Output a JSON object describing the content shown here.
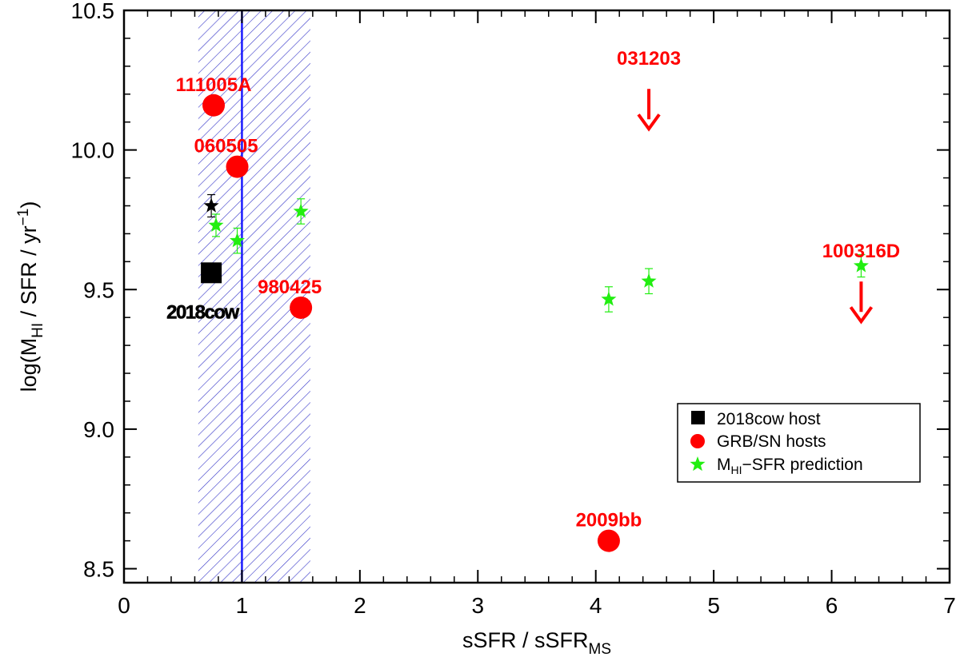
{
  "chart_data": {
    "type": "scatter",
    "title": "",
    "xlabel": {
      "main": "sSFR / sSFR",
      "sub": "MS"
    },
    "ylabel": {
      "pre": "log(M",
      "sub": "HI",
      "mid": " / SFR / yr",
      "sup": "−1",
      "post": ")"
    },
    "xlim": [
      0,
      7
    ],
    "ylim": [
      8.45,
      10.5
    ],
    "xticks": [
      0,
      1,
      2,
      3,
      4,
      5,
      6,
      7
    ],
    "xtick_labels": [
      "0",
      "1",
      "2",
      "3",
      "4",
      "5",
      "6",
      "7"
    ],
    "yticks": [
      8.5,
      9.0,
      9.5,
      10.0,
      10.5
    ],
    "ytick_labels": [
      "8.5",
      "9.0",
      "9.5",
      "10.0",
      "10.5"
    ],
    "main_sequence": {
      "x": 1.0,
      "band": [
        0.63,
        1.58
      ],
      "color": "#1a1aff"
    },
    "cow_host": {
      "label": "2018cow",
      "x": 0.74,
      "y": 9.56,
      "color": "#000000"
    },
    "grb_hosts": [
      {
        "label": "111005A",
        "x": 0.76,
        "y": 10.16
      },
      {
        "label": "060505",
        "x": 0.96,
        "y": 9.94
      },
      {
        "label": "980425",
        "x": 1.5,
        "y": 9.435
      },
      {
        "label": "2009bb",
        "x": 4.11,
        "y": 8.6
      }
    ],
    "upper_limits": [
      {
        "label": "031203",
        "x": 4.45,
        "y": 10.15
      },
      {
        "label": "100316D",
        "x": 6.25,
        "y": 9.46
      }
    ],
    "cow_prediction": {
      "x": 0.74,
      "y": 9.8,
      "err": 0.04,
      "color": "#000000"
    },
    "predictions": [
      {
        "x": 0.78,
        "y": 9.73,
        "err": 0.04
      },
      {
        "x": 0.96,
        "y": 9.675,
        "err": 0.045
      },
      {
        "x": 1.5,
        "y": 9.78,
        "err": 0.045
      },
      {
        "x": 4.11,
        "y": 9.465,
        "err": 0.045
      },
      {
        "x": 4.45,
        "y": 9.53,
        "err": 0.045
      },
      {
        "x": 6.25,
        "y": 9.585,
        "err": 0.04
      }
    ],
    "colors": {
      "grb": "#ff0000",
      "prediction": "#22ee11",
      "axis": "#000000"
    },
    "legend": {
      "position": "bottom-right",
      "entries": [
        {
          "label": "2018cow host",
          "marker": "square",
          "color": "#000000"
        },
        {
          "label": "GRB/SN hosts",
          "marker": "circle",
          "color": "#ff0000"
        },
        {
          "label": "−SFR prediction",
          "label_pre": "M",
          "label_sub": "HI",
          "marker": "star",
          "color": "#22ee11"
        }
      ]
    }
  }
}
